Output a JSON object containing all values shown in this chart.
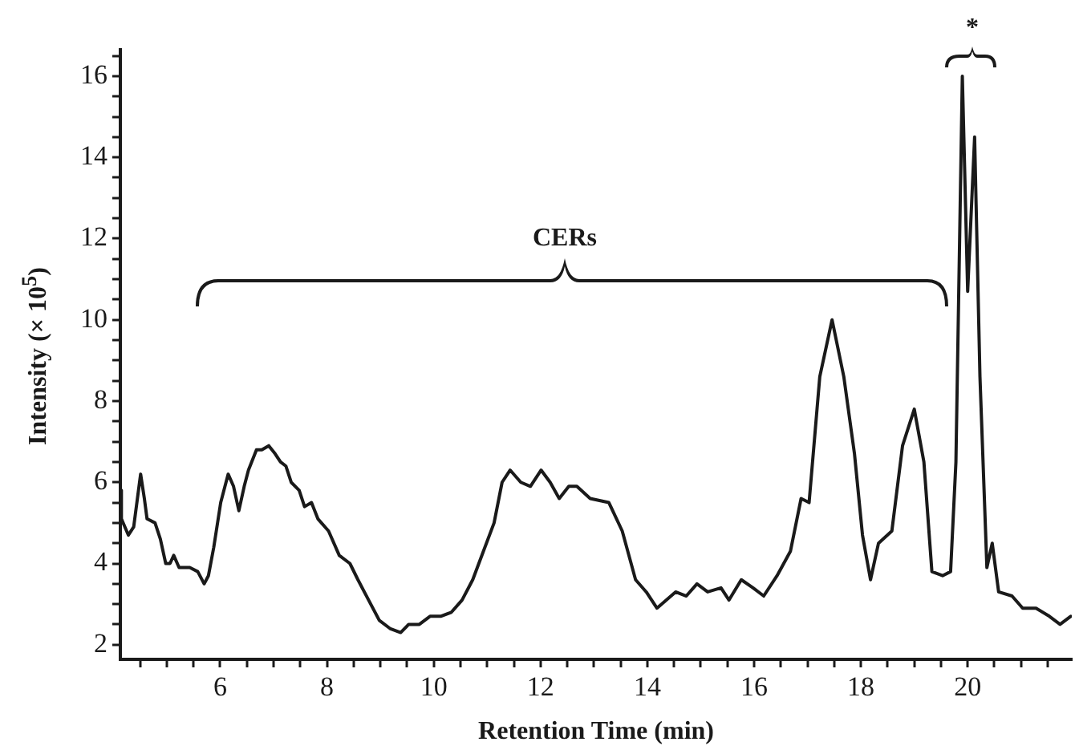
{
  "chart_data": {
    "type": "line",
    "xlabel": "Retention Time (min)",
    "ylabel": "Intensity (× 10$^{5}$)",
    "xlim": [
      4.13,
      21.95
    ],
    "ylim": [
      1.64,
      16.65
    ],
    "xticks": [
      {
        "value": 4.5,
        "label": null
      },
      {
        "value": 5,
        "label": null
      },
      {
        "value": 5.5,
        "label": null
      },
      6,
      {
        "value": 6.5,
        "label": null
      },
      {
        "value": 7,
        "label": null
      },
      {
        "value": 7.5,
        "label": null
      },
      8,
      {
        "value": 8.5,
        "label": null
      },
      {
        "value": 9,
        "label": null
      },
      {
        "value": 9.5,
        "label": null
      },
      10,
      {
        "value": 10.5,
        "label": null
      },
      {
        "value": 11,
        "label": null
      },
      {
        "value": 11.5,
        "label": null
      },
      12,
      {
        "value": 12.5,
        "label": null
      },
      {
        "value": 13,
        "label": null
      },
      {
        "value": 13.5,
        "label": null
      },
      14,
      {
        "value": 14.5,
        "label": null
      },
      {
        "value": 15,
        "label": null
      },
      {
        "value": 15.5,
        "label": null
      },
      16,
      {
        "value": 16.5,
        "label": null
      },
      {
        "value": 17,
        "label": null
      },
      {
        "value": 17.5,
        "label": null
      },
      18,
      {
        "value": 18.5,
        "label": null
      },
      {
        "value": 19,
        "label": null
      },
      {
        "value": 19.5,
        "label": null
      },
      20,
      {
        "value": 20.5,
        "label": null
      },
      {
        "value": 21,
        "label": null
      },
      {
        "value": 21.5,
        "label": null
      }
    ],
    "yticks": [
      2,
      {
        "value": 2.5,
        "label": null
      },
      {
        "value": 3,
        "label": null
      },
      {
        "value": 3.5,
        "label": null
      },
      4,
      {
        "value": 4.5,
        "label": null
      },
      {
        "value": 5,
        "label": null
      },
      {
        "value": 5.5,
        "label": null
      },
      6,
      {
        "value": 6.5,
        "label": null
      },
      {
        "value": 7,
        "label": null
      },
      {
        "value": 7.5,
        "label": null
      },
      8,
      {
        "value": 8.5,
        "label": null
      },
      {
        "value": 9,
        "label": null
      },
      {
        "value": 9.5,
        "label": null
      },
      10,
      {
        "value": 10.5,
        "label": null
      },
      {
        "value": 11,
        "label": null
      },
      {
        "value": 11.5,
        "label": null
      },
      12,
      {
        "value": 12.5,
        "label": null
      },
      {
        "value": 13,
        "label": null
      },
      {
        "value": 13.5,
        "label": null
      },
      14,
      {
        "value": 14.5,
        "label": null
      },
      {
        "value": 15,
        "label": null
      },
      {
        "value": 15.5,
        "label": null
      },
      16,
      {
        "value": 16.5,
        "label": null
      }
    ],
    "grid": false,
    "legend": false,
    "marker": "none",
    "line_style": "solid",
    "annotations": [
      "CERs",
      "*"
    ],
    "series": [
      {
        "color": "#1a1a1a",
        "x": [
          4.13,
          4.15,
          4.28,
          4.38,
          4.51,
          4.58,
          4.63,
          4.78,
          4.88,
          4.98,
          5.06,
          5.13,
          5.23,
          5.43,
          5.58,
          5.7,
          5.78,
          5.88,
          6.01,
          6.15,
          6.25,
          6.35,
          6.45,
          6.53,
          6.68,
          6.78,
          6.91,
          7.03,
          7.13,
          7.23,
          7.33,
          7.48,
          7.58,
          7.71,
          7.83,
          8.03,
          8.23,
          8.43,
          8.58,
          8.78,
          8.98,
          9.18,
          9.38,
          9.53,
          9.73,
          9.93,
          10.13,
          10.33,
          10.53,
          10.73,
          10.93,
          11.13,
          11.28,
          11.43,
          11.63,
          11.81,
          12.01,
          12.18,
          12.35,
          12.53,
          12.68,
          12.93,
          13.28,
          13.53,
          13.78,
          13.98,
          14.18,
          14.53,
          14.73,
          14.93,
          15.13,
          15.38,
          15.53,
          15.76,
          15.98,
          16.18,
          16.43,
          16.68,
          16.88,
          17.03,
          17.23,
          17.46,
          17.68,
          17.88,
          18.03,
          18.18,
          18.33,
          18.58,
          18.78,
          19.0,
          19.18,
          19.33,
          19.53,
          19.68,
          19.78,
          19.9,
          20.0,
          20.13,
          20.23,
          20.36,
          20.46,
          20.58,
          20.83,
          21.03,
          21.28,
          21.53,
          21.73,
          21.93
        ],
        "values": [
          5.8,
          5.1,
          4.7,
          4.9,
          6.2,
          5.6,
          5.1,
          5.0,
          4.6,
          4.0,
          4.0,
          4.2,
          3.9,
          3.9,
          3.8,
          3.5,
          3.7,
          4.4,
          5.5,
          6.2,
          5.9,
          5.3,
          5.9,
          6.3,
          6.8,
          6.8,
          6.9,
          6.7,
          6.5,
          6.4,
          6.0,
          5.8,
          5.4,
          5.5,
          5.1,
          4.8,
          4.2,
          4.0,
          3.6,
          3.1,
          2.6,
          2.4,
          2.3,
          2.5,
          2.5,
          2.7,
          2.7,
          2.8,
          3.1,
          3.6,
          4.3,
          5.0,
          6.0,
          6.3,
          6.0,
          5.9,
          6.3,
          6.0,
          5.6,
          5.9,
          5.9,
          5.6,
          5.5,
          4.8,
          3.6,
          3.3,
          2.9,
          3.3,
          3.2,
          3.5,
          3.3,
          3.4,
          3.1,
          3.6,
          3.4,
          3.2,
          3.7,
          4.3,
          5.6,
          5.5,
          8.6,
          10.0,
          8.6,
          6.7,
          4.7,
          3.6,
          4.5,
          4.8,
          6.9,
          7.8,
          6.5,
          3.8,
          3.7,
          3.8,
          6.5,
          16.0,
          10.7,
          14.5,
          8.6,
          3.9,
          4.5,
          3.3,
          3.2,
          2.9,
          2.9,
          2.7,
          2.5,
          2.7
        ]
      }
    ]
  }
}
